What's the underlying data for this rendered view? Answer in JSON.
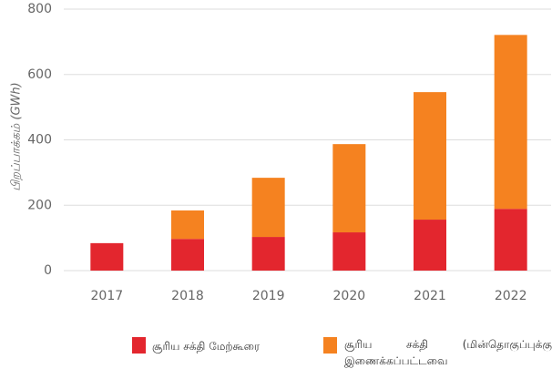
{
  "chart_data": {
    "type": "stacked_bar",
    "y_label": "பிறப்பாக்கம் (GWh)",
    "categories": [
      "2017",
      "2018",
      "2019",
      "2020",
      "2021",
      "2022"
    ],
    "series": [
      {
        "name": "சூரிய சக்தி மேற்கூரை",
        "color": "#e3262e",
        "values": [
          84,
          97,
          103,
          117,
          156,
          189
        ]
      },
      {
        "name": "சூரிய சக்தி (மின்தொகுப்புக்கு இணைக்கப்பட்டவை",
        "color": "#f58220",
        "values": [
          0,
          87,
          181,
          270,
          390,
          532
        ]
      }
    ],
    "ylim": [
      0,
      800
    ],
    "yticks": [
      0,
      200,
      400,
      600,
      800
    ],
    "grid": true
  }
}
